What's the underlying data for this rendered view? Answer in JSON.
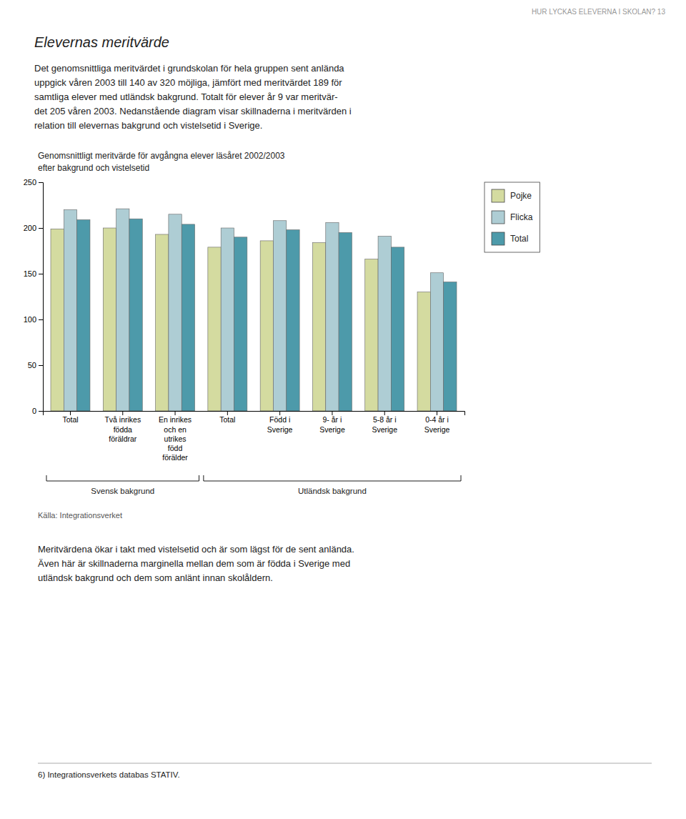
{
  "header": "HUR LYCKAS ELEVERNA I SKOLAN?   13",
  "heading": "Elevernas meritvärde",
  "body": [
    "Det genomsnittliga meritvärdet i grundskolan för hela gruppen sent anlända\nuppgick våren 2003 till 140 av 320 möjliga, jämfört med meritvärdet 189 för\nsamtliga elever med utländsk bakgrund. Totalt för elever år 9 var meritvär-\ndet 205 våren 2003. Nedanstående diagram visar skillnaderna i meritvärden i\nrelation till elevernas bakgrund och vistelsetid i Sverige.",
    "Meritvärdena ökar i takt med vistelsetid och är som lägst för de sent anlända.\nÄven här är skillnaderna marginella mellan dem som är födda i Sverige med\nutländsk bakgrund och dem som anlänt innan skolåldern."
  ],
  "footnote": "6) Integrationsverkets databas STATIV.",
  "chart_data": {
    "type": "bar",
    "title": "Genomsnittligt meritvärde för avgångna elever läsåret 2002/2003",
    "subtitle": "efter bakgrund och vistelsetid",
    "categories": [
      "Total",
      "Två inrikes\nfödda\nföräldrar",
      "En inrikes\noch en\nutrikes\nfödd\nförälder",
      "Total",
      "Född i\nSverige",
      "9- år i\nSverige",
      "5-8 år i\nSverige",
      "0-4 år i\nSverige"
    ],
    "series": [
      {
        "name": "Pojke",
        "color": "#d4dba0",
        "values": [
          199,
          200,
          193,
          179,
          186,
          184,
          166,
          130
        ]
      },
      {
        "name": "Flicka",
        "color": "#aecdd4",
        "values": [
          220,
          221,
          215,
          200,
          208,
          206,
          191,
          151
        ]
      },
      {
        "name": "Total",
        "color": "#4d9aaa",
        "values": [
          209,
          210,
          204,
          190,
          198,
          195,
          179,
          141
        ]
      }
    ],
    "ylim": [
      0,
      250
    ],
    "yticks": [
      0,
      50,
      100,
      150,
      200,
      250
    ],
    "grid": false,
    "legend": "right",
    "annotations": [
      {
        "text": "Svensk bakgrund",
        "range": [
          0,
          2
        ]
      },
      {
        "text": "Utländsk bakgrund",
        "range": [
          3,
          7
        ]
      }
    ],
    "source": "Källa: Integrationsverket"
  }
}
